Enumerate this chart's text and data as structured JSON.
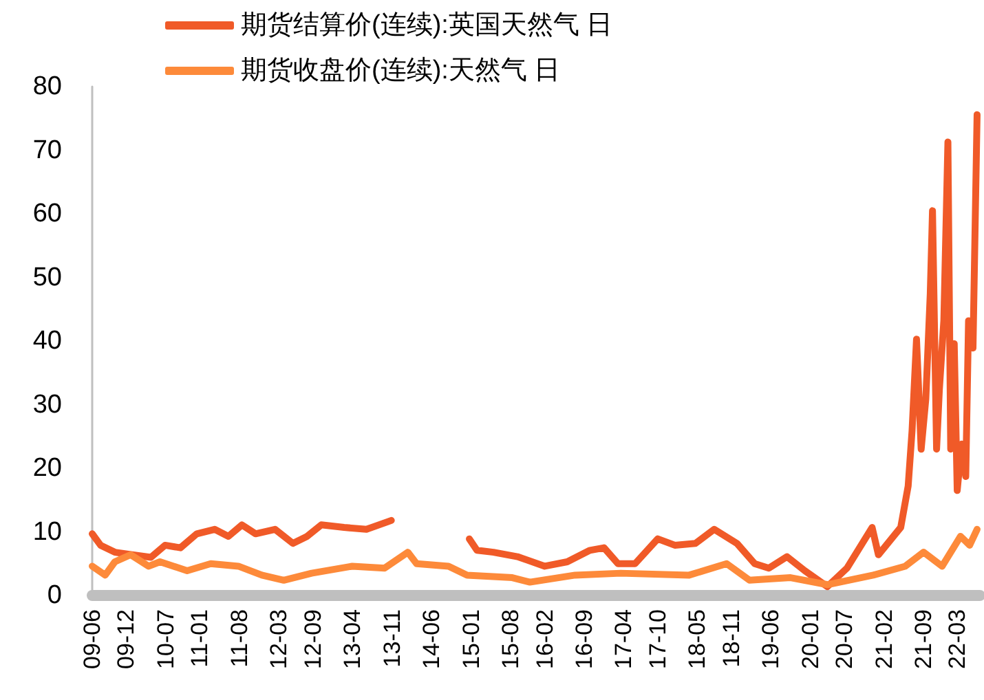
{
  "chart_data": {
    "type": "line",
    "legend": "top left",
    "grid": false,
    "ylim": [
      0,
      80
    ],
    "yticks": [
      0,
      10,
      20,
      30,
      40,
      50,
      60,
      70,
      80
    ],
    "xlim": [
      "2009-06-01",
      "2022-07-01"
    ],
    "xticks": [
      {
        "value": "2009-06-01",
        "label": "09-06"
      },
      {
        "value": "2009-12-01",
        "label": "09-12"
      },
      {
        "value": "2010-07-01",
        "label": "10-07"
      },
      {
        "value": "2011-01-01",
        "label": "11-01"
      },
      {
        "value": "2011-08-01",
        "label": "11-08"
      },
      {
        "value": "2012-03-01",
        "label": "12-03"
      },
      {
        "value": "2012-09-01",
        "label": "12-09"
      },
      {
        "value": "2013-04-01",
        "label": "13-04"
      },
      {
        "value": "2013-11-01",
        "label": "13-11"
      },
      {
        "value": "2014-06-01",
        "label": "14-06"
      },
      {
        "value": "2015-01-01",
        "label": "15-01"
      },
      {
        "value": "2015-08-01",
        "label": "15-08"
      },
      {
        "value": "2016-02-01",
        "label": "16-02"
      },
      {
        "value": "2016-09-01",
        "label": "16-09"
      },
      {
        "value": "2017-04-01",
        "label": "17-04"
      },
      {
        "value": "2017-10-01",
        "label": "17-10"
      },
      {
        "value": "2018-05-01",
        "label": "18-05"
      },
      {
        "value": "2018-11-01",
        "label": "18-11"
      },
      {
        "value": "2019-06-01",
        "label": "19-06"
      },
      {
        "value": "2020-01-01",
        "label": "20-01"
      },
      {
        "value": "2020-07-01",
        "label": "20-07"
      },
      {
        "value": "2021-02-01",
        "label": "21-02"
      },
      {
        "value": "2021-09-01",
        "label": "21-09"
      },
      {
        "value": "2022-03-01",
        "label": "22-03"
      }
    ],
    "marker": "none",
    "line_style": "solid",
    "series": [
      {
        "name": "期货结算价(连续):英国天然气 日",
        "color": "#f05a28",
        "x": [
          "2009-06-01",
          "2009-07-16",
          "2009-10-01",
          "2010-01-01",
          "2010-04-13",
          "2010-06-28",
          "2010-09-19",
          "2010-12-16",
          "2011-03-22",
          "2011-06-04",
          "2011-08-16",
          "2011-10-28",
          "2012-02-10",
          "2012-05-16",
          "2012-08-01",
          "2012-10-16",
          "2013-02-16",
          "2013-06-16",
          "2013-10-28",
          "2014-06-01",
          "2014-12-22",
          "2015-02-01",
          "2015-05-01",
          "2015-09-07",
          "2016-02-01",
          "2016-06-01",
          "2016-10-01",
          "2016-12-16",
          "2017-03-01",
          "2017-06-01",
          "2017-10-01",
          "2018-01-01",
          "2018-04-22",
          "2018-08-01",
          "2018-12-01",
          "2019-03-07",
          "2019-05-22",
          "2019-08-28",
          "2019-12-01",
          "2020-04-01",
          "2020-07-16",
          "2020-11-28",
          "2021-01-01",
          "2021-05-01",
          "2021-06-10",
          "2021-07-01",
          "2021-07-25",
          "2021-08-19",
          "2021-09-13",
          "2021-10-07",
          "2021-10-19",
          "2021-11-10",
          "2021-11-25",
          "2021-12-19",
          "2022-01-10",
          "2022-01-25",
          "2022-02-13",
          "2022-03-01",
          "2022-03-25",
          "2022-04-16",
          "2022-05-01",
          "2022-05-25",
          "2022-06-16"
        ],
        "values": [
          9.7,
          7.9,
          6.8,
          6.4,
          6.0,
          7.9,
          7.5,
          9.7,
          10.4,
          9.3,
          11.1,
          9.7,
          10.4,
          8.2,
          9.3,
          11.1,
          10.7,
          10.4,
          11.8,
          null,
          8.9,
          7.1,
          6.8,
          6.1,
          4.6,
          5.3,
          7.1,
          7.5,
          5.0,
          5.0,
          8.9,
          7.9,
          8.2,
          10.4,
          8.2,
          5.0,
          4.3,
          6.1,
          3.9,
          1.4,
          4.3,
          10.7,
          6.4,
          10.7,
          17.2,
          25.9,
          40.3,
          23,
          30.9,
          47.5,
          60.5,
          23,
          32.4,
          43.2,
          71.3,
          23,
          39.6,
          16.5,
          23.8,
          18.7,
          43.2,
          38.9,
          75.6
        ]
      },
      {
        "name": "期货收盘价(连续):天然气 日",
        "color": "#fd8a3a",
        "x": [
          "2009-06-01",
          "2009-08-10",
          "2009-10-01",
          "2009-12-25",
          "2010-04-01",
          "2010-06-01",
          "2010-10-25",
          "2011-03-01",
          "2011-07-28",
          "2011-12-01",
          "2012-03-28",
          "2012-08-25",
          "2013-04-01",
          "2013-09-22",
          "2014-01-25",
          "2014-03-13",
          "2014-09-01",
          "2014-12-10",
          "2015-08-10",
          "2015-11-13",
          "2016-07-13",
          "2017-03-16",
          "2018-03-19",
          "2018-10-07",
          "2019-02-07",
          "2019-09-16",
          "2020-04-01",
          "2020-12-04",
          "2021-05-25",
          "2021-09-01",
          "2021-12-10",
          "2022-03-19",
          "2022-05-07",
          "2022-06-16"
        ],
        "values": [
          4.6,
          3.2,
          5.3,
          6.4,
          4.6,
          5.3,
          3.9,
          5.0,
          4.6,
          3.2,
          2.4,
          3.5,
          4.6,
          4.3,
          6.8,
          5.0,
          4.6,
          3.2,
          2.8,
          2.1,
          3.2,
          3.5,
          3.2,
          5.0,
          2.4,
          2.8,
          1.7,
          3.2,
          4.6,
          6.8,
          4.6,
          9.3,
          7.9,
          10.4
        ]
      }
    ]
  }
}
